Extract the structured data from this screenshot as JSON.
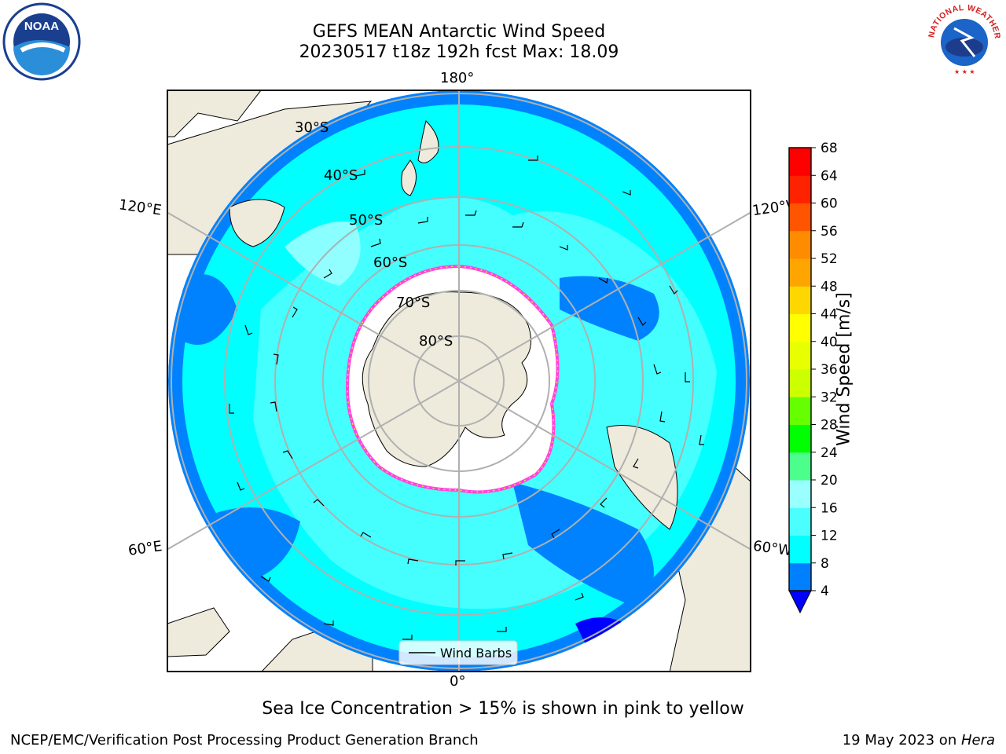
{
  "header": {
    "title": "GEFS MEAN Antarctic Wind Speed",
    "subtitle": "20230517 t18z 192h fcst   Max: 18.09"
  },
  "logos": {
    "left": "NOAA",
    "right": "NATIONAL WEATHER SERVICE"
  },
  "map": {
    "projection": "south-polar-stereographic",
    "colors": {
      "land": "#eeebdc",
      "ocean_low": "#0082ff",
      "ocean_mid": "#00ffff",
      "ocean_high": "#4cffff",
      "ice": "#ffffff",
      "grid": "#b0b0b0"
    },
    "longitude_labels": [
      "180°",
      "120°E",
      "120°W",
      "60°E",
      "60°W",
      "0°"
    ],
    "latitude_labels": [
      "30°S",
      "40°S",
      "50°S",
      "60°S",
      "70°S",
      "80°S"
    ],
    "legend_label": "Wind Barbs"
  },
  "colorbar": {
    "label": "Wind Speed [m/s]",
    "ticks": [
      "4",
      "8",
      "12",
      "16",
      "20",
      "24",
      "28",
      "32",
      "36",
      "40",
      "44",
      "48",
      "52",
      "56",
      "60",
      "64",
      "68"
    ],
    "colors": [
      "#0000ff",
      "#0080ff",
      "#00ffff",
      "#4cffff",
      "#99ffff",
      "#4cff8c",
      "#00ff00",
      "#66ff00",
      "#ccff00",
      "#e8ff00",
      "#ffff00",
      "#ffd700",
      "#ffa500",
      "#ff8c00",
      "#ff5500",
      "#ff2200",
      "#ff0000"
    ]
  },
  "caption": "Sea Ice Concentration > 15% is shown in pink to yellow",
  "footer": {
    "left": "NCEP/EMC/Verification Post Processing Product Generation Branch",
    "right_date": "19 May 2023 on ",
    "right_host": "Hera"
  }
}
